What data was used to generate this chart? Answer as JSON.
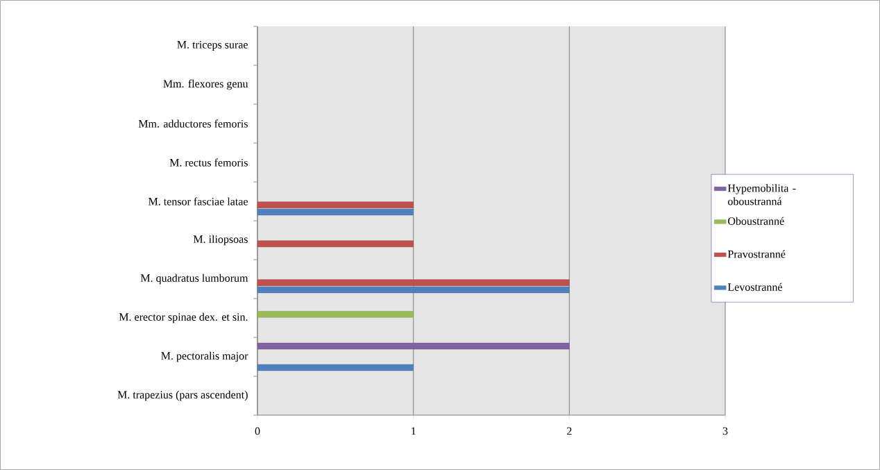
{
  "chart_data": {
    "type": "bar",
    "orientation": "horizontal",
    "categories": [
      "M. triceps surae",
      "Mm. flexores genu",
      "Mm. adductores femoris",
      "M. rectus femoris",
      "M. tensor fasciae latae",
      "M. iliopsoas",
      "M. quadratus lumborum",
      "M. erector spinae dex. et sin.",
      "M. pectoralis major",
      "M. trapezius (pars ascendent)"
    ],
    "series": [
      {
        "name": "Levostranné",
        "color": "#4f81bd",
        "values": [
          null,
          null,
          null,
          null,
          1,
          null,
          2,
          null,
          1,
          null
        ]
      },
      {
        "name": "Pravostranné",
        "color": "#c0504d",
        "values": [
          null,
          null,
          null,
          null,
          1,
          1,
          2,
          null,
          null,
          null
        ]
      },
      {
        "name": "Oboustranné",
        "color": "#9bbb59",
        "values": [
          null,
          null,
          null,
          null,
          null,
          null,
          null,
          1,
          null,
          null
        ]
      },
      {
        "name": "Hypemobilita - oboustranná",
        "color": "#8064a2",
        "values": [
          null,
          null,
          null,
          null,
          null,
          null,
          null,
          null,
          2,
          null
        ]
      }
    ],
    "xlim": [
      0,
      3
    ],
    "xticks": [
      0,
      1,
      2,
      3
    ],
    "grid": "x",
    "legend": "right"
  }
}
